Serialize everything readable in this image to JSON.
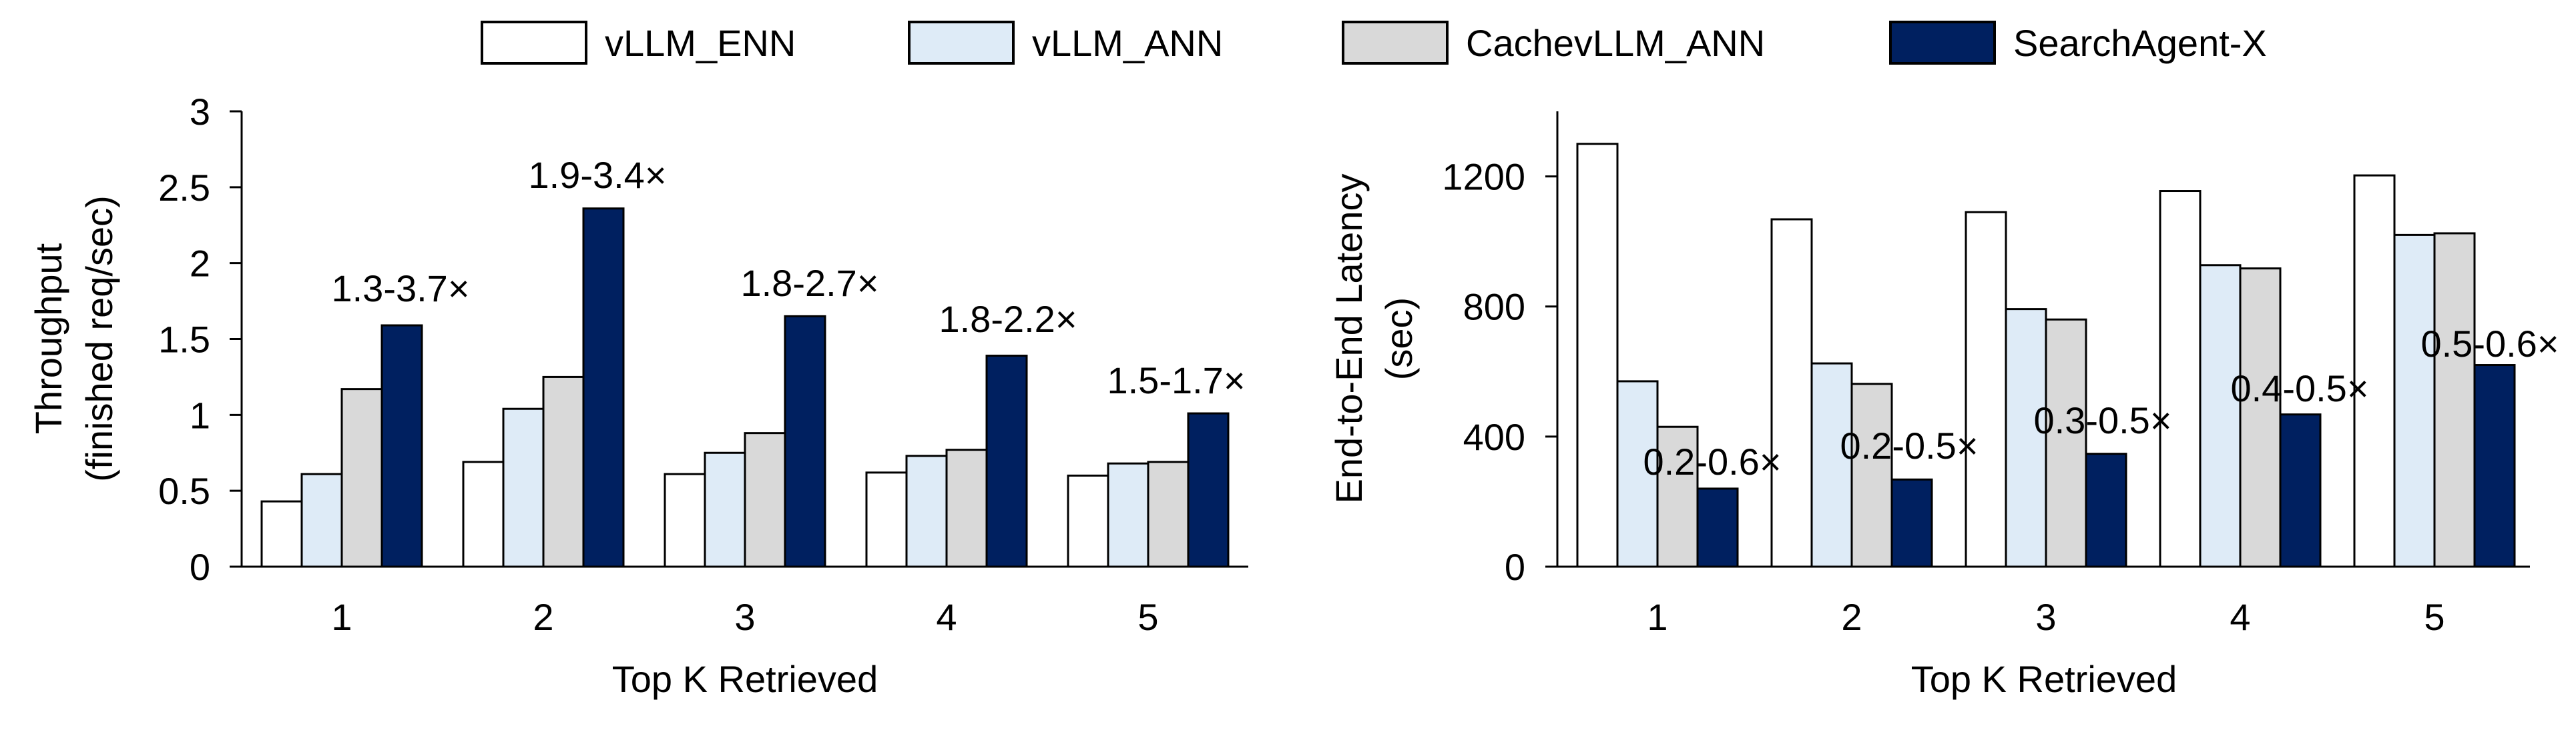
{
  "legend": [
    {
      "name": "vLLM_ENN",
      "color": "#ffffff"
    },
    {
      "name": "vLLM_ANN",
      "color": "#deebf7"
    },
    {
      "name": "CachevLLM_ANN",
      "color": "#d9d9d9"
    },
    {
      "name": "SearchAgent-X",
      "color": "#002060"
    }
  ],
  "chart_data": [
    {
      "type": "bar",
      "xlabel": "Top K Retrieved",
      "ylabel": [
        "Throughput",
        "(finished req/sec)"
      ],
      "categories": [
        "1",
        "2",
        "3",
        "4",
        "5"
      ],
      "ylim": [
        0,
        3
      ],
      "yticks": [
        0,
        0.5,
        1,
        1.5,
        2,
        2.5,
        3
      ],
      "ytick_labels": [
        "0",
        "0.5",
        "1",
        "1.5",
        "2",
        "2.5",
        "3"
      ],
      "grid": false,
      "legend_position": "top",
      "series": [
        {
          "name": "vLLM_ENN",
          "values": [
            0.43,
            0.69,
            0.61,
            0.62,
            0.6
          ]
        },
        {
          "name": "vLLM_ANN",
          "values": [
            0.61,
            1.04,
            0.75,
            0.73,
            0.68
          ]
        },
        {
          "name": "CachevLLM_ANN",
          "values": [
            1.17,
            1.25,
            0.88,
            0.77,
            0.69
          ]
        },
        {
          "name": "SearchAgent-X",
          "values": [
            1.59,
            2.36,
            1.65,
            1.39,
            1.01
          ]
        }
      ],
      "annotations": [
        "1.3-3.7×",
        "1.9-3.4×",
        "1.8-2.7×",
        "1.8-2.2×",
        "1.5-1.7×"
      ]
    },
    {
      "type": "bar",
      "xlabel": "Top K Retrieved",
      "ylabel": [
        "End-to-End Latency",
        "(sec)"
      ],
      "categories": [
        "1",
        "2",
        "3",
        "4",
        "5"
      ],
      "ylim": [
        0,
        1400
      ],
      "yticks": [
        0,
        400,
        800,
        1200
      ],
      "ytick_labels": [
        "0",
        "400",
        "800",
        "1200"
      ],
      "grid": false,
      "legend_position": "top",
      "series": [
        {
          "name": "vLLM_ENN",
          "values": [
            1300,
            1068,
            1090,
            1155,
            1203
          ]
        },
        {
          "name": "vLLM_ANN",
          "values": [
            570,
            625,
            792,
            927,
            1020
          ]
        },
        {
          "name": "CachevLLM_ANN",
          "values": [
            430,
            562,
            760,
            917,
            1025
          ]
        },
        {
          "name": "SearchAgent-X",
          "values": [
            240,
            268,
            347,
            468,
            620
          ]
        }
      ],
      "annotations": [
        "0.2-0.6×",
        "0.2-0.5×",
        "0.3-0.5×",
        "0.4-0.5×",
        "0.5-0.6×"
      ]
    }
  ]
}
